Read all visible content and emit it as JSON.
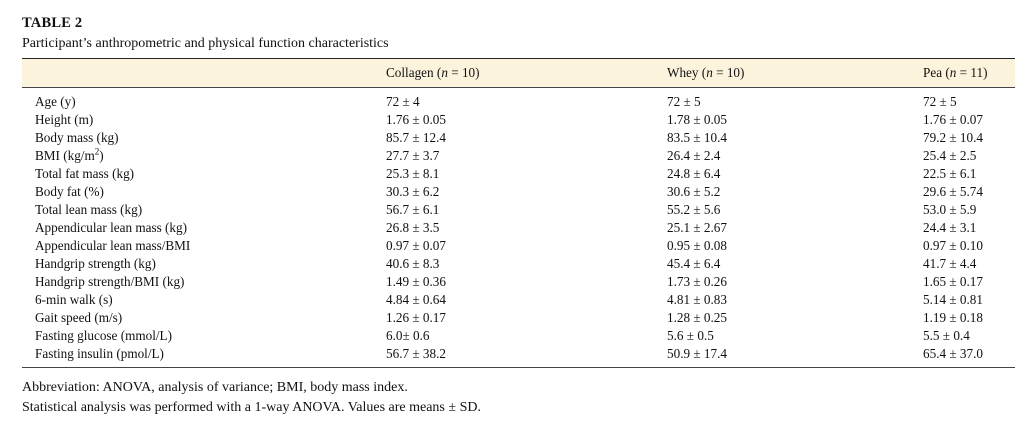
{
  "table_label": "TABLE 2",
  "caption": "Participant’s anthropometric and physical function characteristics",
  "header": {
    "first": "",
    "columns": [
      {
        "name": "Collagen",
        "n": "10"
      },
      {
        "name": "Whey",
        "n": "10"
      },
      {
        "name": "Pea",
        "n": "11"
      }
    ],
    "n_symbol": "n",
    "eq": " = "
  },
  "rows": [
    {
      "label": "Age (y)",
      "collagen": "72 ± 4",
      "whey": "72 ± 5",
      "pea": "72 ± 5"
    },
    {
      "label": "Height (m)",
      "collagen": "1.76 ± 0.05",
      "whey": "1.78 ± 0.05",
      "pea": "1.76 ± 0.07"
    },
    {
      "label": "Body mass (kg)",
      "collagen": "85.7 ± 12.4",
      "whey": "83.5 ± 10.4",
      "pea": "79.2 ± 10.4"
    },
    {
      "label": "BMI (kg/m",
      "sup": "2",
      "label_end": ")",
      "collagen": "27.7 ± 3.7",
      "whey": "26.4 ± 2.4",
      "pea": "25.4 ± 2.5"
    },
    {
      "label": "Total fat mass (kg)",
      "collagen": "25.3 ± 8.1",
      "whey": "24.8 ± 6.4",
      "pea": "22.5 ± 6.1"
    },
    {
      "label": "Body fat (%)",
      "collagen": "30.3 ± 6.2",
      "whey": "30.6 ± 5.2",
      "pea": "29.6 ± 5.74"
    },
    {
      "label": "Total lean mass (kg)",
      "collagen": "56.7 ± 6.1",
      "whey": "55.2 ± 5.6",
      "pea": "53.0 ± 5.9"
    },
    {
      "label": "Appendicular lean mass (kg)",
      "collagen": "26.8 ± 3.5",
      "whey": "25.1 ± 2.67",
      "pea": "24.4 ± 3.1"
    },
    {
      "label": "Appendicular lean mass/BMI",
      "collagen": "0.97 ± 0.07",
      "whey": "0.95 ± 0.08",
      "pea": "0.97 ± 0.10"
    },
    {
      "label": "Handgrip strength (kg)",
      "collagen": "40.6 ± 8.3",
      "whey": "45.4 ± 6.4",
      "pea": "41.7 ± 4.4"
    },
    {
      "label": "Handgrip strength/BMI (kg)",
      "collagen": "1.49 ± 0.36",
      "whey": "1.73 ± 0.26",
      "pea": "1.65 ± 0.17"
    },
    {
      "label": "6-min walk (s)",
      "collagen": "4.84 ± 0.64",
      "whey": "4.81 ± 0.83",
      "pea": "5.14 ± 0.81"
    },
    {
      "label": "Gait speed (m/s)",
      "collagen": "1.26 ± 0.17",
      "whey": "1.28 ± 0.25",
      "pea": "1.19 ± 0.18"
    },
    {
      "label": "Fasting glucose (mmol/L)",
      "collagen": "6.0± 0.6",
      "whey": "5.6 ± 0.5",
      "pea": "5.5 ± 0.4"
    },
    {
      "label": "Fasting insulin (pmol/L)",
      "collagen": "56.7 ± 38.2",
      "whey": "50.9 ± 17.4",
      "pea": "65.4 ± 37.0"
    }
  ],
  "notes": [
    "Abbreviation: ANOVA, analysis of variance; BMI, body mass index.",
    "Statistical analysis was performed with a 1-way ANOVA. Values are means ± SD."
  ],
  "colors": {
    "header_background": "#fcf3dc",
    "rule": "#222222",
    "text": "#111111"
  }
}
